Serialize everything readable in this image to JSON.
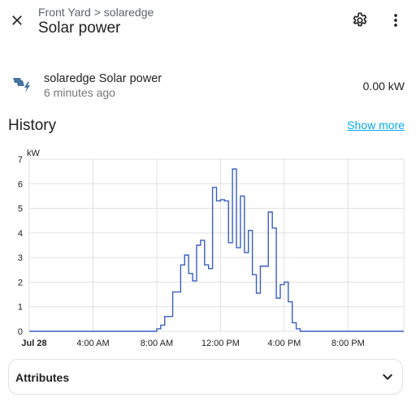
{
  "header": {
    "breadcrumb": "Front Yard > solaredge",
    "title": "Solar power"
  },
  "entity": {
    "name": "solaredge Solar power",
    "last_changed": "6 minutes ago",
    "state": "0.00 kW",
    "icon": "solar-power-icon"
  },
  "history": {
    "title": "History",
    "show_more": "Show more"
  },
  "attributes": {
    "label": "Attributes"
  },
  "colors": {
    "accent": "#03a9f4",
    "line": "#3b5fc0",
    "grid": "#e0e0e0"
  },
  "chart_data": {
    "type": "line",
    "step": true,
    "ylabel": "kW",
    "ylim": [
      0,
      7
    ],
    "yticks": [
      0,
      1,
      2,
      3,
      4,
      5,
      6,
      7
    ],
    "xticks": [
      "Jul 28",
      "4:00 AM",
      "8:00 AM",
      "12:00 PM",
      "4:00 PM",
      "8:00 PM"
    ],
    "xlim_hours": [
      0,
      23.5
    ],
    "grid": true,
    "series": [
      {
        "x": [
          0,
          8.0,
          8.25,
          8.5,
          9.0,
          9.5,
          9.75,
          10.0,
          10.25,
          10.5,
          10.75,
          11.0,
          11.25,
          11.5,
          11.75,
          12.0,
          12.25,
          12.5,
          12.75,
          13.0,
          13.25,
          13.5,
          13.75,
          14.0,
          14.25,
          14.5,
          14.75,
          15.0,
          15.25,
          15.5,
          15.75,
          16.0,
          16.25,
          16.5,
          16.75,
          17.0,
          17.25,
          17.5,
          17.75,
          23.5
        ],
        "y": [
          0,
          0.1,
          0.25,
          0.6,
          1.6,
          2.7,
          3.1,
          2.35,
          2.05,
          3.5,
          3.7,
          2.7,
          2.55,
          5.85,
          5.3,
          5.35,
          5.3,
          3.6,
          6.6,
          3.4,
          5.5,
          3.2,
          4.1,
          2.3,
          1.55,
          2.65,
          2.65,
          4.85,
          4.2,
          1.35,
          1.9,
          2.0,
          1.2,
          0.35,
          0.1,
          0.0,
          0.0,
          0.0,
          0.0,
          0.0
        ]
      }
    ]
  }
}
